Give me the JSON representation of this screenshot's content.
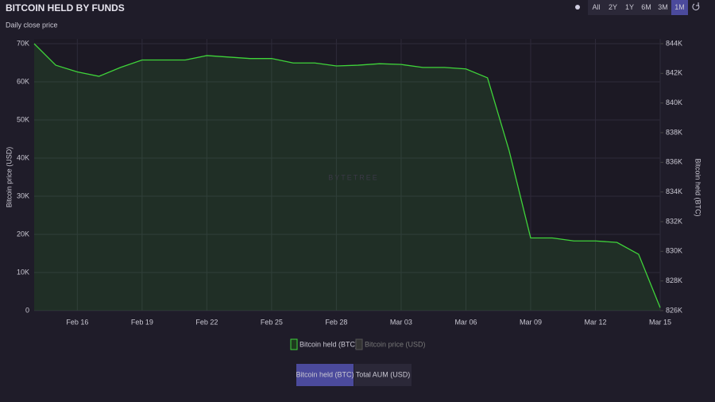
{
  "header": {
    "title": "BITCOIN HELD BY FUNDS",
    "subtitle": "Daily close price"
  },
  "range_buttons": {
    "options": [
      "All",
      "2Y",
      "1Y",
      "6M",
      "3M",
      "1M"
    ],
    "active": 5
  },
  "watermark": "BYTETREE",
  "tabs": {
    "options": [
      "Bitcoin held (BTC)",
      "Total AUM (USD)"
    ],
    "active": 0
  },
  "chart_data": {
    "type": "line",
    "ylabel": "Bitcoin price (USD)",
    "y2label": "Bitcoin held (BTC)",
    "categories": [
      null,
      null,
      "Feb 16",
      null,
      null,
      "Feb 19",
      null,
      null,
      "Feb 22",
      null,
      null,
      "Feb 25",
      null,
      null,
      "Feb 28",
      null,
      null,
      "Mar 03",
      null,
      null,
      "Mar 06",
      null,
      null,
      "Mar 09",
      null,
      null,
      "Mar 12",
      null,
      null,
      "Mar 15"
    ],
    "ylim": [
      0,
      70000
    ],
    "yticks": [
      0,
      {
        "value": 10000,
        "label": "10K"
      },
      {
        "value": 20000,
        "label": "20K"
      },
      {
        "value": 30000,
        "label": "30K"
      },
      {
        "value": 40000,
        "label": "40K"
      },
      {
        "value": 50000,
        "label": "50K"
      },
      {
        "value": 60000,
        "label": "60K"
      },
      {
        "value": 70000,
        "label": "70K"
      }
    ],
    "y2lim": [
      826000,
      844000
    ],
    "y2ticks": [
      {
        "value": 826000,
        "label": "826K"
      },
      {
        "value": 828000,
        "label": "828K"
      },
      {
        "value": 830000,
        "label": "830K"
      },
      {
        "value": 832000,
        "label": "832K"
      },
      {
        "value": 834000,
        "label": "834K"
      },
      {
        "value": 836000,
        "label": "836K"
      },
      {
        "value": 838000,
        "label": "838K"
      },
      {
        "value": 840000,
        "label": "840K"
      },
      {
        "value": 842000,
        "label": "842K"
      },
      {
        "value": 844000,
        "label": "844K"
      }
    ],
    "grid": true,
    "series": [
      {
        "name": "Bitcoin held (BTC)",
        "color": "#3fd43a",
        "axis": "y2",
        "values": [
          844000,
          842550,
          842100,
          841800,
          842400,
          842900,
          842900,
          842900,
          843200,
          843100,
          843000,
          843000,
          842700,
          842700,
          842500,
          842550,
          842650,
          842600,
          842400,
          842400,
          842300,
          841700,
          836800,
          830900,
          830900,
          830700,
          830700,
          830600,
          829800,
          826200
        ]
      },
      {
        "name": "Bitcoin price (USD)",
        "color": "#555555",
        "hidden": true
      }
    ]
  }
}
